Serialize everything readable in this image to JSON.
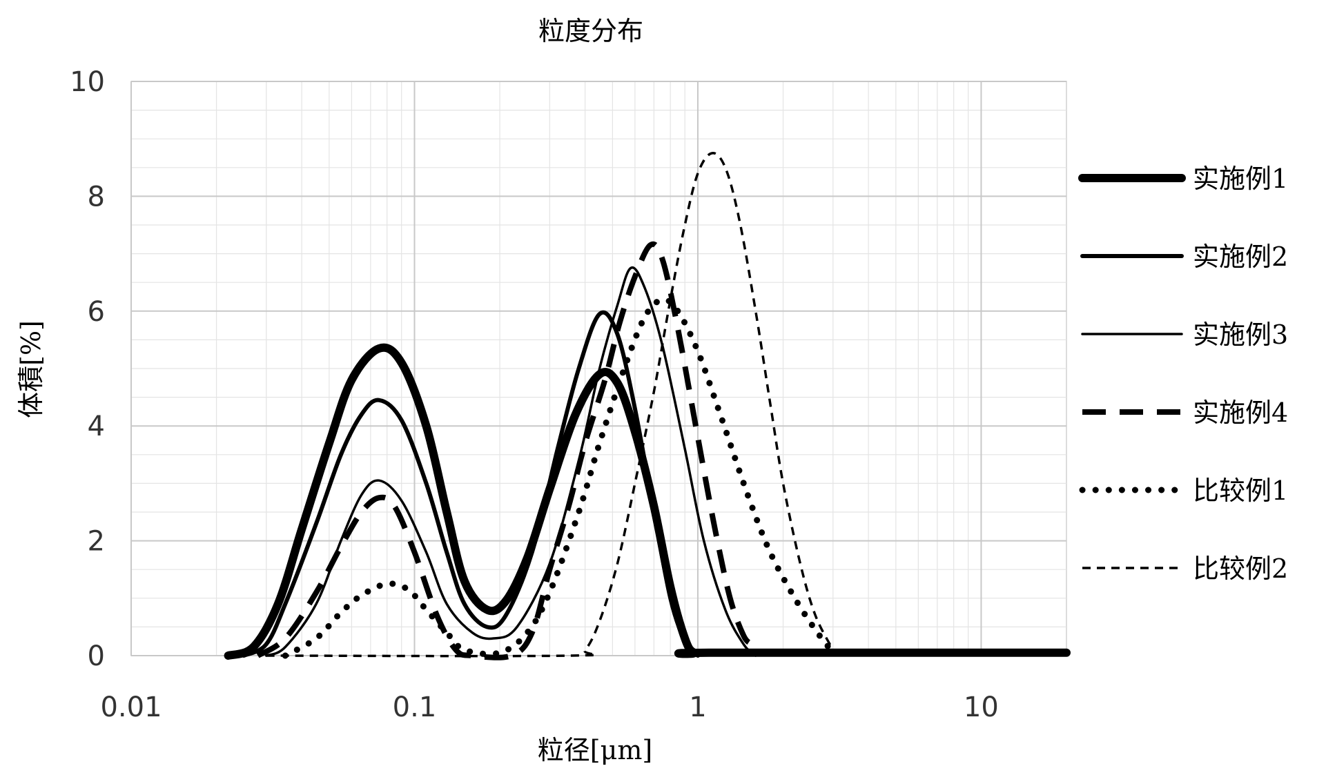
{
  "chart_data": {
    "type": "line",
    "title": "粒度分布",
    "xlabel": "粒径[μm]",
    "ylabel": "体積[%]",
    "x_scale": "log",
    "xlim": [
      0.01,
      20
    ],
    "ylim": [
      0,
      10
    ],
    "x_ticks": [
      {
        "value": 0.01,
        "label": "0.01"
      },
      {
        "value": 0.1,
        "label": "0.1"
      },
      {
        "value": 1,
        "label": "1"
      },
      {
        "value": 10,
        "label": "10"
      }
    ],
    "y_ticks": [
      {
        "value": 0,
        "label": "0"
      },
      {
        "value": 2,
        "label": "2"
      },
      {
        "value": 4,
        "label": "4"
      },
      {
        "value": 6,
        "label": "6"
      },
      {
        "value": 8,
        "label": "8"
      },
      {
        "value": 10,
        "label": "10"
      }
    ],
    "grid": true,
    "legend_position": "right",
    "series": [
      {
        "name": "实施例1",
        "style": "thick-solid",
        "color": "#000000",
        "points": [
          [
            0.022,
            0
          ],
          [
            0.027,
            0.15
          ],
          [
            0.033,
            0.9
          ],
          [
            0.04,
            2.2
          ],
          [
            0.05,
            3.7
          ],
          [
            0.06,
            4.8
          ],
          [
            0.075,
            5.35
          ],
          [
            0.09,
            5.1
          ],
          [
            0.11,
            4.0
          ],
          [
            0.13,
            2.5
          ],
          [
            0.15,
            1.3
          ],
          [
            0.18,
            0.8
          ],
          [
            0.21,
            0.95
          ],
          [
            0.25,
            1.7
          ],
          [
            0.3,
            2.9
          ],
          [
            0.37,
            4.2
          ],
          [
            0.45,
            4.9
          ],
          [
            0.52,
            4.75
          ],
          [
            0.6,
            3.9
          ],
          [
            0.7,
            2.6
          ],
          [
            0.8,
            1.2
          ],
          [
            0.9,
            0.3
          ],
          [
            0.97,
            0.05
          ],
          [
            1.1,
            0.05
          ],
          [
            20,
            0.05
          ]
        ]
      },
      {
        "name": "实施例2",
        "style": "solid",
        "color": "#000000",
        "points": [
          [
            0.025,
            0
          ],
          [
            0.03,
            0.2
          ],
          [
            0.035,
            0.9
          ],
          [
            0.045,
            2.3
          ],
          [
            0.055,
            3.5
          ],
          [
            0.065,
            4.2
          ],
          [
            0.075,
            4.45
          ],
          [
            0.09,
            4.1
          ],
          [
            0.11,
            3.0
          ],
          [
            0.13,
            1.8
          ],
          [
            0.15,
            0.9
          ],
          [
            0.18,
            0.5
          ],
          [
            0.21,
            0.7
          ],
          [
            0.26,
            1.8
          ],
          [
            0.32,
            3.6
          ],
          [
            0.38,
            5.0
          ],
          [
            0.45,
            5.95
          ],
          [
            0.52,
            5.6
          ],
          [
            0.6,
            4.3
          ],
          [
            0.7,
            2.5
          ],
          [
            0.8,
            1.0
          ],
          [
            0.9,
            0.25
          ],
          [
            1.0,
            0
          ]
        ]
      },
      {
        "name": "实施例3",
        "style": "thin-solid",
        "color": "#000000",
        "points": [
          [
            0.03,
            0
          ],
          [
            0.035,
            0.15
          ],
          [
            0.045,
            0.9
          ],
          [
            0.055,
            2.0
          ],
          [
            0.065,
            2.8
          ],
          [
            0.075,
            3.05
          ],
          [
            0.09,
            2.7
          ],
          [
            0.11,
            1.8
          ],
          [
            0.13,
            0.9
          ],
          [
            0.16,
            0.4
          ],
          [
            0.19,
            0.3
          ],
          [
            0.23,
            0.5
          ],
          [
            0.3,
            1.6
          ],
          [
            0.38,
            3.4
          ],
          [
            0.45,
            5.0
          ],
          [
            0.52,
            6.1
          ],
          [
            0.58,
            6.75
          ],
          [
            0.65,
            6.4
          ],
          [
            0.75,
            5.4
          ],
          [
            0.9,
            3.6
          ],
          [
            1.05,
            2.0
          ],
          [
            1.25,
            0.8
          ],
          [
            1.45,
            0.2
          ],
          [
            1.6,
            0
          ]
        ]
      },
      {
        "name": "实施例4",
        "style": "long-dash",
        "color": "#000000",
        "points": [
          [
            0.028,
            0
          ],
          [
            0.035,
            0.3
          ],
          [
            0.045,
            1.1
          ],
          [
            0.055,
            1.9
          ],
          [
            0.065,
            2.5
          ],
          [
            0.075,
            2.75
          ],
          [
            0.085,
            2.6
          ],
          [
            0.1,
            1.8
          ],
          [
            0.12,
            0.7
          ],
          [
            0.14,
            0.1
          ],
          [
            0.16,
            0
          ],
          [
            0.22,
            0
          ],
          [
            0.26,
            0.4
          ],
          [
            0.3,
            1.5
          ],
          [
            0.35,
            2.6
          ],
          [
            0.4,
            3.7
          ],
          [
            0.47,
            4.8
          ],
          [
            0.53,
            5.8
          ],
          [
            0.6,
            6.6
          ],
          [
            0.68,
            7.15
          ],
          [
            0.75,
            6.9
          ],
          [
            0.85,
            5.7
          ],
          [
            1.0,
            3.8
          ],
          [
            1.15,
            2.2
          ],
          [
            1.3,
            1.0
          ],
          [
            1.45,
            0.35
          ],
          [
            1.55,
            0.2
          ]
        ]
      },
      {
        "name": "比较例1",
        "style": "dotted",
        "color": "#000000",
        "points": [
          [
            0.035,
            0
          ],
          [
            0.045,
            0.3
          ],
          [
            0.055,
            0.75
          ],
          [
            0.065,
            1.05
          ],
          [
            0.08,
            1.25
          ],
          [
            0.095,
            1.15
          ],
          [
            0.11,
            0.8
          ],
          [
            0.13,
            0.4
          ],
          [
            0.15,
            0.1
          ],
          [
            0.2,
            0.05
          ],
          [
            0.25,
            0.4
          ],
          [
            0.3,
            1.1
          ],
          [
            0.38,
            2.5
          ],
          [
            0.45,
            3.7
          ],
          [
            0.55,
            5.0
          ],
          [
            0.65,
            5.9
          ],
          [
            0.75,
            6.2
          ],
          [
            0.85,
            6.0
          ],
          [
            1.0,
            5.3
          ],
          [
            1.2,
            4.2
          ],
          [
            1.5,
            2.8
          ],
          [
            1.8,
            1.8
          ],
          [
            2.2,
            1.0
          ],
          [
            2.6,
            0.45
          ],
          [
            3.0,
            0.05
          ]
        ]
      },
      {
        "name": "比较例2",
        "style": "short-dash",
        "color": "#000000",
        "points": [
          [
            0.03,
            0
          ],
          [
            0.35,
            0
          ],
          [
            0.4,
            0.1
          ],
          [
            0.45,
            0.6
          ],
          [
            0.52,
            1.6
          ],
          [
            0.6,
            3.0
          ],
          [
            0.7,
            4.6
          ],
          [
            0.8,
            6.2
          ],
          [
            0.9,
            7.5
          ],
          [
            1.0,
            8.4
          ],
          [
            1.12,
            8.75
          ],
          [
            1.25,
            8.5
          ],
          [
            1.4,
            7.6
          ],
          [
            1.6,
            6.0
          ],
          [
            1.8,
            4.4
          ],
          [
            2.0,
            3.0
          ],
          [
            2.3,
            1.6
          ],
          [
            2.6,
            0.7
          ],
          [
            3.0,
            0.1
          ]
        ]
      }
    ]
  }
}
